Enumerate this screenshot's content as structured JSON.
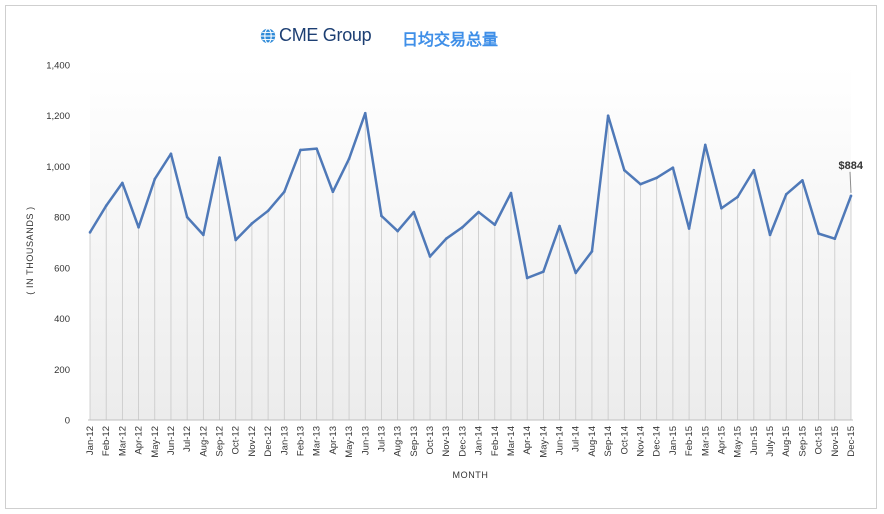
{
  "header": {
    "logo_text": "CME Group",
    "chart_title": "日均交易总量"
  },
  "colors": {
    "line": "#4f79b8",
    "logo_blue": "#1d3f73",
    "title_blue": "#3f8fe8",
    "dropline": "#c8c8c8"
  },
  "icons": {
    "logo": "globe-icon"
  },
  "chart_data": {
    "type": "line",
    "title": "日均交易总量",
    "xlabel": "MONTH",
    "ylabel": "( IN THOUSANDS )",
    "ylim": [
      0,
      1400
    ],
    "yticks": [
      0,
      200,
      400,
      600,
      800,
      1000,
      1200,
      1400
    ],
    "ytick_labels": [
      "0",
      "200",
      "400",
      "600",
      "800",
      "1,000",
      "1,200",
      "1,400"
    ],
    "grid": false,
    "drop_lines": true,
    "categories": [
      "Jan-12",
      "Feb-12",
      "Mar-12",
      "Apr-12",
      "May-12",
      "Jun-12",
      "Jul-12",
      "Aug-12",
      "Sep-12",
      "Oct-12",
      "Nov-12",
      "Dec-12",
      "Jan-13",
      "Feb-13",
      "Mar-13",
      "Apr-13",
      "May-13",
      "Jun-13",
      "Jul-13",
      "Aug-13",
      "Sep-13",
      "Oct-13",
      "Nov-13",
      "Dec-13",
      "Jan-14",
      "Feb-14",
      "Mar-14",
      "Apr-14",
      "May-14",
      "Jun-14",
      "Jul-14",
      "Aug-14",
      "Sep-14",
      "Oct-14",
      "Nov-14",
      "Dec-14",
      "Jan-15",
      "Feb-15",
      "Mar-15",
      "Apr-15",
      "May-15",
      "Jun-15",
      "July-15",
      "Aug-15",
      "Sep-15",
      "Oct-15",
      "Nov-15",
      "Dec-15"
    ],
    "values": [
      740,
      845,
      935,
      760,
      950,
      1050,
      800,
      730,
      1035,
      710,
      775,
      825,
      900,
      1065,
      1070,
      900,
      1030,
      1210,
      805,
      745,
      820,
      645,
      715,
      760,
      820,
      770,
      895,
      560,
      585,
      765,
      580,
      665,
      1200,
      985,
      930,
      955,
      995,
      755,
      1085,
      835,
      880,
      985,
      730,
      890,
      945,
      735,
      715,
      884
    ],
    "annotations": [
      {
        "category": "Dec-15",
        "text": "$884"
      }
    ]
  }
}
